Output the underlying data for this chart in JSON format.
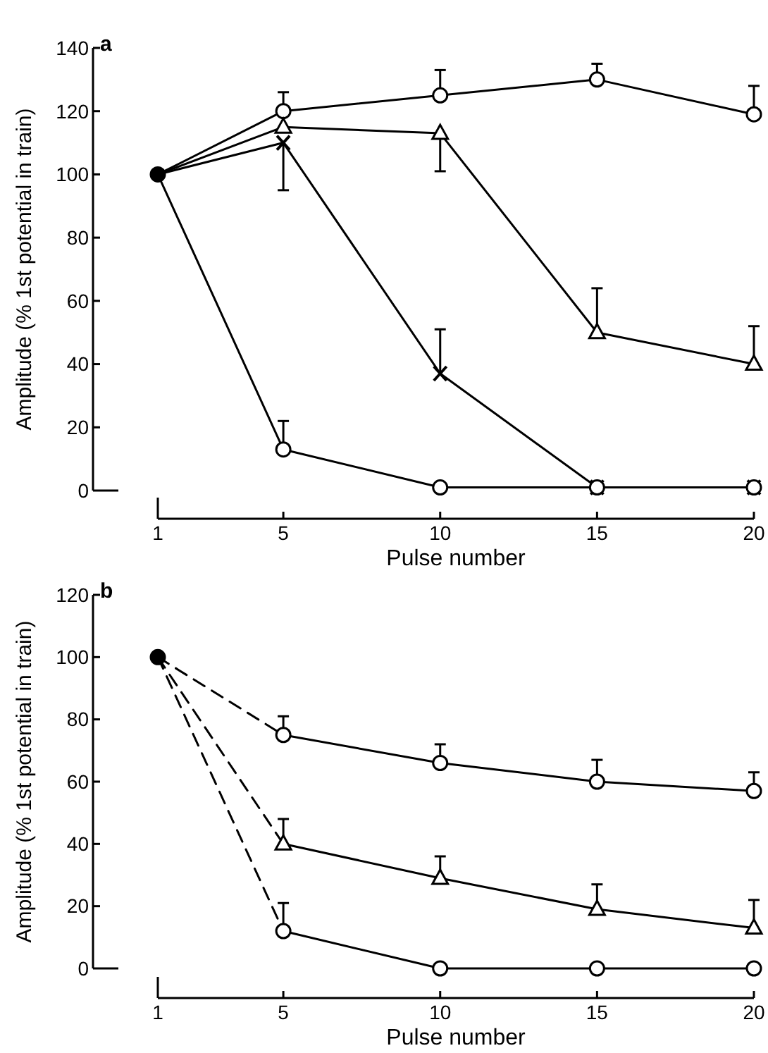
{
  "chart_data": [
    {
      "type": "line",
      "title": "a",
      "xlabel": "Pulse number",
      "ylabel": "Amplitude (% 1st potential in train)",
      "xlim": [
        1,
        20
      ],
      "xticks": [
        1,
        5,
        10,
        15,
        20
      ],
      "ylim": [
        0,
        140
      ],
      "yticks": [
        0,
        20,
        40,
        60,
        80,
        100,
        120,
        140
      ],
      "line_style": "solid",
      "series": [
        {
          "color": "#000000",
          "x": [
            1,
            5
          ],
          "values": [
            100,
            120
          ]
        },
        {
          "color": "#000000",
          "x": [
            1,
            5
          ],
          "values": [
            100,
            115
          ]
        },
        {
          "color": "#000000",
          "x": [
            1,
            5
          ],
          "values": [
            100,
            110
          ]
        },
        {
          "color": "#000000",
          "x": [
            1,
            5
          ],
          "values": [
            100,
            13
          ]
        },
        {
          "type": "scatter",
          "color": "#000000",
          "marker": "circle",
          "x": [
            1
          ],
          "values": [
            100
          ]
        },
        {
          "color": "#000000",
          "marker": "circle",
          "x": [
            5,
            10,
            15,
            20
          ],
          "values": [
            120,
            125,
            130,
            119
          ],
          "errors": [
            [
              120,
              126
            ],
            [
              125,
              133
            ],
            [
              130,
              135
            ],
            [
              119,
              128
            ]
          ]
        },
        {
          "color": "#000000",
          "marker": "triangle",
          "x": [
            5,
            10,
            15,
            20
          ],
          "values": [
            115,
            113,
            50,
            40
          ],
          "errors": [
            null,
            [
              101,
              113
            ],
            [
              50,
              64
            ],
            [
              40,
              52
            ]
          ]
        },
        {
          "color": "#000000",
          "marker": "cross",
          "x": [
            5,
            10,
            15,
            20
          ],
          "values": [
            110,
            37,
            1,
            1
          ],
          "errors": [
            [
              95,
              110
            ],
            [
              37,
              51
            ],
            null,
            null
          ]
        },
        {
          "color": "#000000",
          "marker": "circle",
          "x": [
            5,
            10,
            15,
            20
          ],
          "values": [
            13,
            1,
            1,
            1
          ],
          "errors": [
            [
              13,
              22
            ],
            null,
            null,
            null
          ]
        }
      ]
    },
    {
      "type": "line",
      "title": "b",
      "xlabel": "Pulse number",
      "ylabel": "Amplitude (% 1st potential in train)",
      "xlim": [
        1,
        20
      ],
      "xticks": [
        1,
        5,
        10,
        15,
        20
      ],
      "ylim": [
        0,
        120
      ],
      "yticks": [
        0,
        20,
        40,
        60,
        80,
        100,
        120
      ],
      "line_style": "solid",
      "series": [
        {
          "color": "#000000",
          "line_style": "dashed",
          "x": [
            1,
            5
          ],
          "values": [
            100,
            75
          ]
        },
        {
          "color": "#000000",
          "line_style": "dashed",
          "x": [
            1,
            5
          ],
          "values": [
            100,
            40
          ]
        },
        {
          "color": "#000000",
          "line_style": "dashed",
          "x": [
            1,
            5
          ],
          "values": [
            100,
            12
          ]
        },
        {
          "type": "scatter",
          "color": "#000000",
          "marker": "circle",
          "x": [
            1
          ],
          "values": [
            100
          ]
        },
        {
          "color": "#000000",
          "marker": "circle",
          "x": [
            5,
            10,
            15,
            20
          ],
          "values": [
            75,
            66,
            60,
            57
          ],
          "errors": [
            [
              75,
              81
            ],
            [
              66,
              72
            ],
            [
              60,
              67
            ],
            [
              57,
              63
            ]
          ]
        },
        {
          "color": "#000000",
          "marker": "triangle",
          "x": [
            5,
            10,
            15,
            20
          ],
          "values": [
            40,
            29,
            19,
            13
          ],
          "errors": [
            [
              40,
              48
            ],
            [
              29,
              36
            ],
            [
              19,
              27
            ],
            [
              13,
              22
            ]
          ]
        },
        {
          "color": "#000000",
          "marker": "circle",
          "x": [
            5,
            10,
            15,
            20
          ],
          "values": [
            12,
            0,
            0,
            0
          ],
          "errors": [
            [
              12,
              21
            ],
            null,
            null,
            null
          ]
        }
      ]
    }
  ]
}
